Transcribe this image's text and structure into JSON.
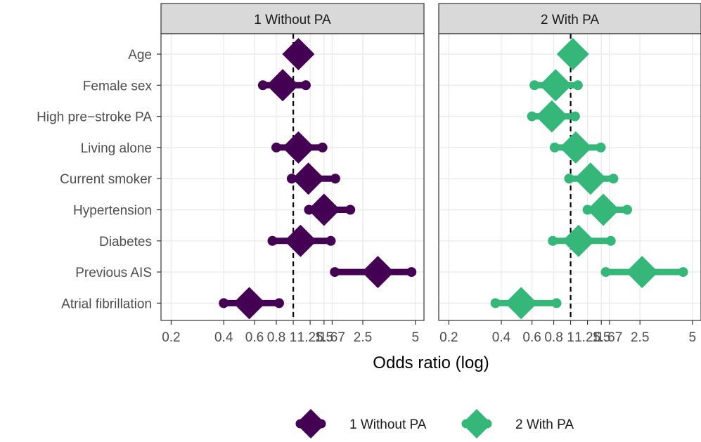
{
  "chart_data": {
    "type": "forest",
    "xlabel": "Odds ratio (log)",
    "x_scale": "log",
    "xlim": [
      0.175,
      5.6
    ],
    "x_ticks": [
      0.2,
      0.4,
      0.6,
      0.8,
      1,
      1.25,
      1.5,
      1.67,
      2.5,
      5
    ],
    "x_tick_labels": [
      "0.2",
      "0.4",
      "0.6",
      "0.8",
      "1",
      "1.25",
      "1.5",
      "1.67",
      "2.5",
      "5"
    ],
    "reference_line": 1,
    "grid": true,
    "legend_position": "bottom",
    "categories": [
      "Age",
      "Female sex",
      "High pre−stroke PA",
      "Living alone",
      "Current smoker",
      "Hypertension",
      "Diabetes",
      "Previous AIS",
      "Atrial fibrillation"
    ],
    "series": [
      {
        "name": "1 Without PA",
        "color": "#440154",
        "estimate": [
          1.07,
          0.87,
          null,
          1.07,
          1.22,
          1.5,
          1.1,
          3.05,
          0.56
        ],
        "lower": [
          null,
          0.67,
          null,
          0.8,
          0.98,
          1.23,
          0.76,
          1.73,
          0.4
        ],
        "upper": [
          null,
          1.18,
          null,
          1.47,
          1.74,
          2.12,
          1.64,
          4.75,
          0.83
        ]
      },
      {
        "name": "2 With PA",
        "color": "#35B779",
        "estimate": [
          1.03,
          0.82,
          0.78,
          1.07,
          1.3,
          1.54,
          1.11,
          2.57,
          0.52
        ],
        "lower": [
          null,
          0.62,
          0.6,
          0.81,
          0.98,
          1.25,
          0.79,
          1.59,
          0.37
        ],
        "upper": [
          null,
          1.1,
          1.06,
          1.49,
          1.76,
          2.11,
          1.7,
          4.42,
          0.83
        ]
      }
    ]
  }
}
